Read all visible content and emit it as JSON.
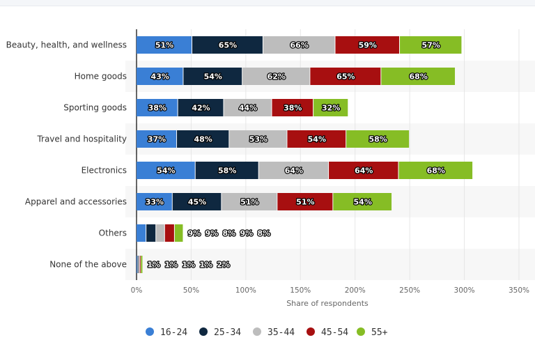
{
  "chart_data": {
    "type": "bar",
    "orientation": "horizontal",
    "stacked": true,
    "categories": [
      "Beauty, health, and wellness",
      "Home goods",
      "Sporting goods",
      "Travel and hospitality",
      "Electronics",
      "Apparel and accessories",
      "Others",
      "None of the above"
    ],
    "series": [
      {
        "name": "16-24",
        "color": "#3a7fd5",
        "values": [
          51,
          43,
          38,
          37,
          54,
          33,
          9,
          1
        ]
      },
      {
        "name": "25-34",
        "color": "#0f2840",
        "values": [
          65,
          54,
          42,
          48,
          58,
          45,
          9,
          1
        ]
      },
      {
        "name": "35-44",
        "color": "#bdbdbd",
        "values": [
          66,
          62,
          44,
          53,
          64,
          51,
          8,
          1
        ]
      },
      {
        "name": "45-54",
        "color": "#a70f10",
        "values": [
          59,
          65,
          38,
          54,
          64,
          51,
          9,
          1
        ]
      },
      {
        "name": "55+",
        "color": "#86bd25",
        "values": [
          57,
          68,
          32,
          58,
          68,
          54,
          8,
          2
        ]
      }
    ],
    "xlabel": "Share of respondents",
    "xlim": [
      0,
      350
    ],
    "xticks": [
      "0%",
      "50%",
      "100%",
      "150%",
      "200%",
      "250%",
      "300%",
      "350%"
    ],
    "grid": true,
    "legend": "bottom"
  }
}
